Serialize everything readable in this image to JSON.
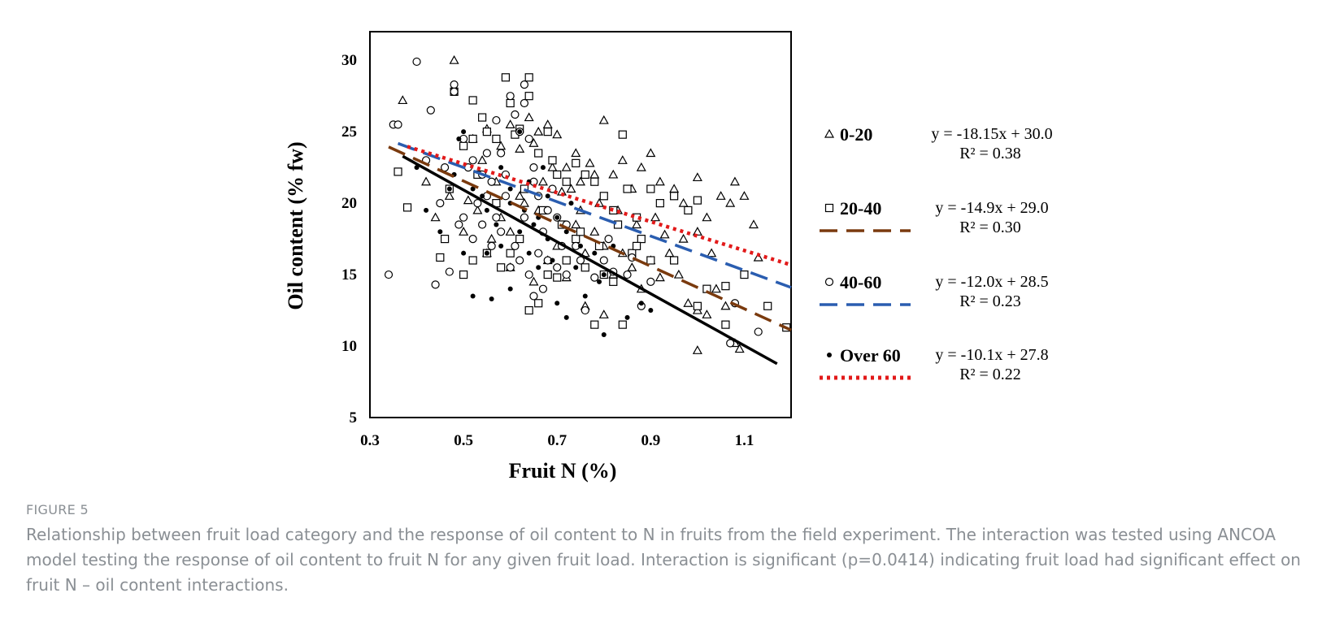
{
  "colors": {
    "text": "#000000",
    "caption": "#8a8f94"
  },
  "chart_data": {
    "type": "scatter",
    "xlabel": "Fruit N (%)",
    "ylabel": "Oil content  (% fw)",
    "xlim": [
      0.3,
      1.2
    ],
    "ylim": [
      5,
      32
    ],
    "xticks": [
      "0.3",
      "0.5",
      "0.7",
      "0.9",
      "1.1"
    ],
    "yticks": [
      "5",
      "10",
      "15",
      "20",
      "25",
      "30"
    ],
    "grid": false,
    "legend_position": "right",
    "series": [
      {
        "name": "0-20",
        "marker": "triangle",
        "line_style": "none",
        "line_color": "#000000",
        "equation": "y = -18.15x + 30.0",
        "r2": "R² = 0.38",
        "slope": -18.15,
        "intercept": 30.0,
        "line_x": [
          0.37,
          1.17
        ],
        "points": [
          [
            0.48,
            30
          ],
          [
            0.37,
            27.2
          ],
          [
            0.52,
            24.5
          ],
          [
            0.55,
            25.2
          ],
          [
            0.6,
            25.5
          ],
          [
            0.62,
            23.8
          ],
          [
            0.65,
            24.2
          ],
          [
            0.68,
            25.5
          ],
          [
            0.7,
            24.8
          ],
          [
            0.72,
            22.5
          ],
          [
            0.74,
            23.5
          ],
          [
            0.75,
            21.5
          ],
          [
            0.77,
            22.8
          ],
          [
            0.78,
            22
          ],
          [
            0.8,
            25.8
          ],
          [
            0.82,
            22
          ],
          [
            0.84,
            23
          ],
          [
            0.86,
            21
          ],
          [
            0.88,
            22.5
          ],
          [
            0.9,
            23.5
          ],
          [
            0.92,
            21.5
          ],
          [
            0.95,
            21
          ],
          [
            0.97,
            20
          ],
          [
            1.0,
            21.8
          ],
          [
            1.02,
            19
          ],
          [
            1.05,
            20.5
          ],
          [
            1.07,
            20
          ],
          [
            1.08,
            21.5
          ],
          [
            1.1,
            20.5
          ],
          [
            1.12,
            18.5
          ],
          [
            1.13,
            16.2
          ],
          [
            0.44,
            19
          ],
          [
            0.42,
            21.5
          ],
          [
            0.5,
            18
          ],
          [
            0.53,
            19.5
          ],
          [
            0.56,
            17.5
          ],
          [
            0.58,
            19
          ],
          [
            0.6,
            18
          ],
          [
            0.63,
            20
          ],
          [
            0.66,
            19.5
          ],
          [
            0.68,
            16
          ],
          [
            0.7,
            17
          ],
          [
            0.72,
            14.8
          ],
          [
            0.74,
            18.5
          ],
          [
            0.76,
            16.5
          ],
          [
            0.78,
            18
          ],
          [
            0.8,
            17
          ],
          [
            0.82,
            15
          ],
          [
            0.84,
            16.5
          ],
          [
            0.86,
            15.5
          ],
          [
            0.88,
            14
          ],
          [
            0.9,
            16
          ],
          [
            0.92,
            14.8
          ],
          [
            0.94,
            16.5
          ],
          [
            0.96,
            15
          ],
          [
            0.98,
            13
          ],
          [
            1.0,
            12.5
          ],
          [
            1.02,
            12.2
          ],
          [
            1.04,
            14
          ],
          [
            1.06,
            12.8
          ],
          [
            1.0,
            9.7
          ],
          [
            1.08,
            10.2
          ],
          [
            1.09,
            9.8
          ],
          [
            0.8,
            12.2
          ],
          [
            0.76,
            12.8
          ],
          [
            0.65,
            14.5
          ],
          [
            0.6,
            15.5
          ],
          [
            0.55,
            16.5
          ],
          [
            0.47,
            20.5
          ],
          [
            0.51,
            20.2
          ],
          [
            0.57,
            21.5
          ],
          [
            0.62,
            20.5
          ],
          [
            0.67,
            21.5
          ],
          [
            0.71,
            20.8
          ],
          [
            0.75,
            19.5
          ],
          [
            0.79,
            20
          ],
          [
            0.83,
            19.5
          ],
          [
            0.87,
            18.5
          ],
          [
            0.91,
            19
          ],
          [
            0.93,
            17.8
          ],
          [
            0.97,
            17.5
          ],
          [
            1.0,
            18
          ],
          [
            1.03,
            16.5
          ],
          [
            0.69,
            22.5
          ],
          [
            0.73,
            21
          ],
          [
            0.64,
            26
          ],
          [
            0.66,
            25
          ],
          [
            0.58,
            24
          ],
          [
            0.54,
            23
          ]
        ]
      },
      {
        "name": "20-40",
        "marker": "square",
        "line_style": "dashed",
        "line_color": "#7a3a0e",
        "equation": "y = -14.9x + 29.0",
        "r2": "R² = 0.30",
        "slope": -14.9,
        "intercept": 29.0,
        "line_x": [
          0.34,
          1.2
        ],
        "points": [
          [
            0.36,
            22.2
          ],
          [
            0.38,
            19.7
          ],
          [
            0.45,
            16.2
          ],
          [
            0.46,
            17.5
          ],
          [
            0.48,
            27.8
          ],
          [
            0.5,
            24
          ],
          [
            0.52,
            24.5
          ],
          [
            0.52,
            27.2
          ],
          [
            0.54,
            26
          ],
          [
            0.55,
            25
          ],
          [
            0.57,
            24.5
          ],
          [
            0.59,
            28.8
          ],
          [
            0.6,
            27
          ],
          [
            0.61,
            24.8
          ],
          [
            0.62,
            25.2
          ],
          [
            0.64,
            28.8
          ],
          [
            0.64,
            27.5
          ],
          [
            0.66,
            23.5
          ],
          [
            0.68,
            25
          ],
          [
            0.69,
            23
          ],
          [
            0.7,
            22
          ],
          [
            0.72,
            21.5
          ],
          [
            0.74,
            22.8
          ],
          [
            0.76,
            22
          ],
          [
            0.78,
            21.5
          ],
          [
            0.8,
            20.5
          ],
          [
            0.82,
            19.5
          ],
          [
            0.84,
            24.8
          ],
          [
            0.85,
            21
          ],
          [
            0.87,
            19
          ],
          [
            0.9,
            21
          ],
          [
            0.92,
            20
          ],
          [
            0.95,
            20.5
          ],
          [
            0.98,
            19.5
          ],
          [
            1.0,
            20.2
          ],
          [
            0.5,
            15
          ],
          [
            0.52,
            16
          ],
          [
            0.55,
            16.5
          ],
          [
            0.58,
            15.5
          ],
          [
            0.6,
            16.5
          ],
          [
            0.62,
            17.5
          ],
          [
            0.64,
            12.5
          ],
          [
            0.66,
            13
          ],
          [
            0.68,
            15
          ],
          [
            0.7,
            14.8
          ],
          [
            0.72,
            16
          ],
          [
            0.74,
            17.5
          ],
          [
            0.76,
            15.5
          ],
          [
            0.78,
            11.5
          ],
          [
            0.8,
            15
          ],
          [
            0.82,
            14.5
          ],
          [
            0.84,
            11.5
          ],
          [
            0.86,
            16.5
          ],
          [
            0.88,
            17.5
          ],
          [
            0.9,
            16
          ],
          [
            0.95,
            16
          ],
          [
            1.0,
            12.8
          ],
          [
            1.02,
            14
          ],
          [
            1.06,
            14.2
          ],
          [
            1.06,
            11.5
          ],
          [
            1.1,
            15
          ],
          [
            1.15,
            12.8
          ],
          [
            1.19,
            11.3
          ],
          [
            0.47,
            21
          ],
          [
            0.53,
            22
          ],
          [
            0.57,
            20
          ],
          [
            0.63,
            21
          ],
          [
            0.67,
            19.5
          ],
          [
            0.71,
            18.5
          ],
          [
            0.75,
            18
          ],
          [
            0.79,
            17
          ],
          [
            0.83,
            18.5
          ],
          [
            0.87,
            17
          ]
        ]
      },
      {
        "name": "40-60",
        "marker": "circle",
        "line_style": "dashed",
        "line_color": "#2a5db0",
        "equation": "y = -12.0x + 28.5",
        "r2": "R² = 0.23",
        "slope": -12.0,
        "intercept": 28.5,
        "line_x": [
          0.36,
          1.2
        ],
        "points": [
          [
            0.34,
            15
          ],
          [
            0.35,
            25.5
          ],
          [
            0.36,
            25.5
          ],
          [
            0.4,
            29.9
          ],
          [
            0.43,
            26.5
          ],
          [
            0.44,
            14.3
          ],
          [
            0.47,
            15.2
          ],
          [
            0.48,
            28.3
          ],
          [
            0.48,
            27.8
          ],
          [
            0.5,
            24.5
          ],
          [
            0.52,
            23
          ],
          [
            0.54,
            22
          ],
          [
            0.55,
            20.5
          ],
          [
            0.56,
            21.5
          ],
          [
            0.57,
            25.8
          ],
          [
            0.58,
            23.5
          ],
          [
            0.6,
            27.5
          ],
          [
            0.61,
            26.2
          ],
          [
            0.62,
            25
          ],
          [
            0.63,
            28.3
          ],
          [
            0.63,
            27
          ],
          [
            0.64,
            24.5
          ],
          [
            0.65,
            22.5
          ],
          [
            0.66,
            20.5
          ],
          [
            0.68,
            19.5
          ],
          [
            0.69,
            21
          ],
          [
            0.7,
            19
          ],
          [
            0.72,
            18.5
          ],
          [
            0.5,
            19
          ],
          [
            0.52,
            17.5
          ],
          [
            0.54,
            18.5
          ],
          [
            0.56,
            17
          ],
          [
            0.58,
            18
          ],
          [
            0.6,
            15.5
          ],
          [
            0.61,
            17
          ],
          [
            0.62,
            16
          ],
          [
            0.64,
            15
          ],
          [
            0.65,
            13.5
          ],
          [
            0.66,
            16.5
          ],
          [
            0.67,
            14
          ],
          [
            0.68,
            16
          ],
          [
            0.7,
            15.5
          ],
          [
            0.72,
            15
          ],
          [
            0.74,
            17
          ],
          [
            0.76,
            12.5
          ],
          [
            0.78,
            14.8
          ],
          [
            0.8,
            16
          ],
          [
            0.82,
            15.2
          ],
          [
            0.86,
            16.2
          ],
          [
            0.88,
            12.8
          ],
          [
            0.9,
            14.5
          ],
          [
            1.07,
            10.2
          ],
          [
            1.08,
            13
          ],
          [
            1.13,
            11
          ],
          [
            0.45,
            20
          ],
          [
            0.49,
            18.5
          ],
          [
            0.53,
            20
          ],
          [
            0.57,
            19
          ],
          [
            0.59,
            20.5
          ],
          [
            0.63,
            19
          ],
          [
            0.67,
            18
          ],
          [
            0.71,
            17
          ],
          [
            0.75,
            16
          ],
          [
            0.81,
            17.5
          ],
          [
            0.85,
            15
          ],
          [
            0.42,
            23
          ],
          [
            0.46,
            22.5
          ],
          [
            0.51,
            22.5
          ],
          [
            0.55,
            23.5
          ],
          [
            0.59,
            22
          ],
          [
            0.65,
            21.5
          ]
        ]
      },
      {
        "name": "Over 60",
        "marker": "dot",
        "line_style": "dotted",
        "line_color": "#e21a1a",
        "equation": "y = -10.1x + 27.8",
        "r2": "R² = 0.22",
        "slope": -10.1,
        "intercept": 27.8,
        "line_x": [
          0.38,
          1.2
        ],
        "points": [
          [
            0.4,
            22.5
          ],
          [
            0.42,
            19.5
          ],
          [
            0.45,
            18
          ],
          [
            0.47,
            21
          ],
          [
            0.48,
            22
          ],
          [
            0.49,
            24.5
          ],
          [
            0.5,
            25
          ],
          [
            0.5,
            16.5
          ],
          [
            0.52,
            13.5
          ],
          [
            0.54,
            20.5
          ],
          [
            0.55,
            16.5
          ],
          [
            0.56,
            13.3
          ],
          [
            0.57,
            18.5
          ],
          [
            0.58,
            22.5
          ],
          [
            0.6,
            14
          ],
          [
            0.6,
            20
          ],
          [
            0.62,
            25
          ],
          [
            0.63,
            19.5
          ],
          [
            0.64,
            16.5
          ],
          [
            0.65,
            18.5
          ],
          [
            0.66,
            15.5
          ],
          [
            0.67,
            22.5
          ],
          [
            0.68,
            17.5
          ],
          [
            0.69,
            16
          ],
          [
            0.7,
            13
          ],
          [
            0.7,
            19
          ],
          [
            0.72,
            12
          ],
          [
            0.72,
            18
          ],
          [
            0.74,
            15.5
          ],
          [
            0.75,
            17
          ],
          [
            0.76,
            13.5
          ],
          [
            0.78,
            16.5
          ],
          [
            0.79,
            14.5
          ],
          [
            0.8,
            10.8
          ],
          [
            0.8,
            15
          ],
          [
            0.82,
            17
          ],
          [
            0.85,
            12
          ],
          [
            0.88,
            13
          ],
          [
            0.9,
            12.5
          ],
          [
            0.6,
            21
          ],
          [
            0.62,
            18
          ],
          [
            0.64,
            21.5
          ],
          [
            0.66,
            19
          ],
          [
            0.55,
            19.5
          ],
          [
            0.52,
            21
          ],
          [
            0.58,
            17
          ],
          [
            0.68,
            20.5
          ],
          [
            0.73,
            20
          ]
        ]
      }
    ]
  },
  "caption": {
    "figure_label": "FIGURE 5",
    "text": "Relationship between fruit load category and the response of oil content to N in fruits from the field experiment. The interaction was tested using ANCOA model testing the response of oil content to fruit N for any given fruit load. Interaction is significant (p=0.0414) indicating fruit load had significant effect on fruit N – oil content interactions."
  }
}
